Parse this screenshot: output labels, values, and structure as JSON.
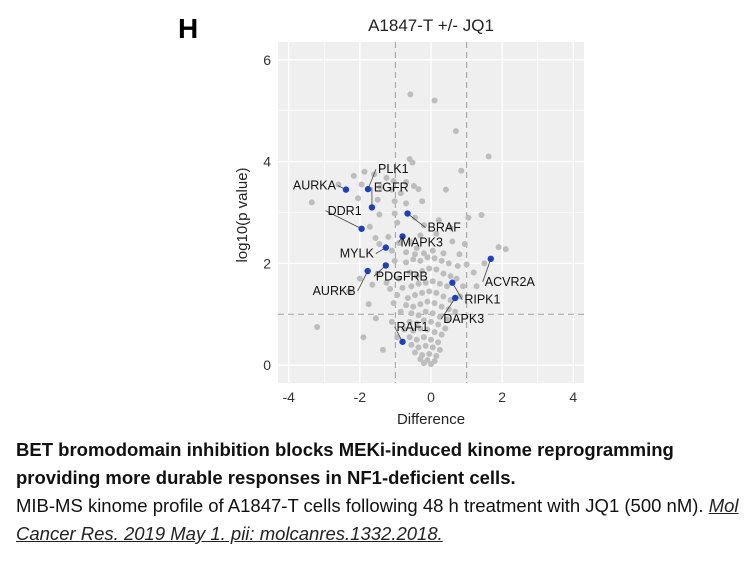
{
  "panel_letter": "H",
  "chart_data": {
    "type": "scatter",
    "title": "A1847-T +/- JQ1",
    "xlabel": "Difference",
    "ylabel": "log10(p value)",
    "xlim": [
      -4.3,
      4.3
    ],
    "ylim": [
      -0.35,
      6.35
    ],
    "xticks": [
      -4,
      -2,
      0,
      2,
      4
    ],
    "yticks": [
      0,
      2,
      4,
      6
    ],
    "grid": true,
    "thresholds": {
      "x": [
        -1,
        1
      ],
      "y": 1
    },
    "colors": {
      "background": "#efefef",
      "grid": "#ffffff",
      "background_points": "#bdbdbd",
      "highlight": "#1b3fc4",
      "threshold": "#aaaaaa"
    },
    "highlighted": [
      {
        "label": "PLK1",
        "x": -1.77,
        "y": 3.46
      },
      {
        "label": "AURKA",
        "x": -2.39,
        "y": 3.45
      },
      {
        "label": "EGFR",
        "x": -1.66,
        "y": 3.1
      },
      {
        "label": "DDR1",
        "x": -1.95,
        "y": 2.68
      },
      {
        "label": "BRAF",
        "x": -0.66,
        "y": 2.98
      },
      {
        "label": "MAPK3",
        "x": -0.8,
        "y": 2.53
      },
      {
        "label": "MYLK",
        "x": -1.27,
        "y": 2.31
      },
      {
        "label": "AURKB",
        "x": -1.78,
        "y": 1.85
      },
      {
        "label": "PDGFRB",
        "x": -1.27,
        "y": 1.96
      },
      {
        "label": "ACVR2A",
        "x": 1.68,
        "y": 2.09
      },
      {
        "label": "RIPK1",
        "x": 0.6,
        "y": 1.62
      },
      {
        "label": "DAPK3",
        "x": 0.68,
        "y": 1.32
      },
      {
        "label": "RAF1",
        "x": -0.8,
        "y": 0.46
      }
    ],
    "background_points": [
      [
        -0.58,
        5.32
      ],
      [
        0.1,
        5.2
      ],
      [
        0.7,
        4.6
      ],
      [
        1.62,
        4.1
      ],
      [
        0.85,
        3.82
      ],
      [
        -0.6,
        4.05
      ],
      [
        -0.52,
        3.98
      ],
      [
        -1.87,
        3.8
      ],
      [
        -2.17,
        3.72
      ],
      [
        -1.6,
        3.75
      ],
      [
        -1.25,
        3.68
      ],
      [
        -1.05,
        3.62
      ],
      [
        -0.7,
        3.6
      ],
      [
        -0.48,
        3.52
      ],
      [
        -1.95,
        3.55
      ],
      [
        -1.42,
        3.5
      ],
      [
        -1.1,
        3.45
      ],
      [
        -0.85,
        3.38
      ],
      [
        -0.35,
        3.46
      ],
      [
        0.42,
        3.45
      ],
      [
        -3.35,
        3.2
      ],
      [
        -2.05,
        3.28
      ],
      [
        -1.5,
        3.25
      ],
      [
        -1.02,
        3.22
      ],
      [
        -0.7,
        3.18
      ],
      [
        -0.25,
        3.22
      ],
      [
        -1.45,
        2.96
      ],
      [
        -1.02,
        2.98
      ],
      [
        -0.45,
        2.9
      ],
      [
        0.22,
        2.85
      ],
      [
        1.42,
        2.95
      ],
      [
        -1.72,
        2.72
      ],
      [
        -0.95,
        2.8
      ],
      [
        -0.2,
        2.75
      ],
      [
        0.55,
        2.7
      ],
      [
        -1.56,
        2.5
      ],
      [
        -1.2,
        2.52
      ],
      [
        -0.58,
        2.42
      ],
      [
        -0.3,
        2.55
      ],
      [
        0.15,
        2.58
      ],
      [
        0.6,
        2.43
      ],
      [
        1.9,
        2.32
      ],
      [
        -1.45,
        2.38
      ],
      [
        -0.9,
        2.4
      ],
      [
        -0.4,
        2.3
      ],
      [
        0.95,
        2.38
      ],
      [
        -1.1,
        2.25
      ],
      [
        -0.7,
        2.22
      ],
      [
        -0.45,
        2.18
      ],
      [
        -0.2,
        2.2
      ],
      [
        0.05,
        2.25
      ],
      [
        0.35,
        2.2
      ],
      [
        0.8,
        2.18
      ],
      [
        1.5,
        2.0
      ],
      [
        -2.0,
        1.7
      ],
      [
        -1.5,
        1.8
      ],
      [
        -1.02,
        2.05
      ],
      [
        -0.7,
        2.02
      ],
      [
        -0.5,
        2.08
      ],
      [
        -0.3,
        2.05
      ],
      [
        -0.1,
        2.12
      ],
      [
        0.1,
        2.1
      ],
      [
        0.3,
        2.05
      ],
      [
        0.5,
        2.0
      ],
      [
        0.75,
        1.95
      ],
      [
        1.0,
        1.98
      ],
      [
        1.2,
        1.82
      ],
      [
        -2.3,
        1.45
      ],
      [
        -1.65,
        1.58
      ],
      [
        -1.25,
        1.62
      ],
      [
        -0.9,
        1.7
      ],
      [
        -0.6,
        1.82
      ],
      [
        -0.4,
        1.75
      ],
      [
        -0.25,
        1.85
      ],
      [
        -0.05,
        1.9
      ],
      [
        0.15,
        1.88
      ],
      [
        0.35,
        1.8
      ],
      [
        0.55,
        1.75
      ],
      [
        0.72,
        1.7
      ],
      [
        0.9,
        1.55
      ],
      [
        1.28,
        1.55
      ],
      [
        -1.15,
        1.5
      ],
      [
        -0.8,
        1.52
      ],
      [
        -0.55,
        1.55
      ],
      [
        -0.35,
        1.6
      ],
      [
        -0.15,
        1.62
      ],
      [
        0.05,
        1.65
      ],
      [
        0.25,
        1.6
      ],
      [
        0.45,
        1.55
      ],
      [
        0.82,
        1.35
      ],
      [
        -0.95,
        1.38
      ],
      [
        -0.65,
        1.32
      ],
      [
        -0.45,
        1.38
      ],
      [
        -0.25,
        1.42
      ],
      [
        -0.05,
        1.45
      ],
      [
        0.15,
        1.42
      ],
      [
        0.35,
        1.35
      ],
      [
        0.55,
        1.28
      ],
      [
        -1.75,
        1.2
      ],
      [
        -1.05,
        1.22
      ],
      [
        -0.7,
        1.18
      ],
      [
        -0.5,
        1.15
      ],
      [
        -0.3,
        1.2
      ],
      [
        -0.1,
        1.25
      ],
      [
        0.1,
        1.22
      ],
      [
        0.3,
        1.15
      ],
      [
        0.5,
        1.1
      ],
      [
        0.68,
        1.05
      ],
      [
        -0.85,
        1.05
      ],
      [
        -0.55,
        1.02
      ],
      [
        -0.35,
        0.98
      ],
      [
        -0.15,
        1.05
      ],
      [
        0.05,
        1.02
      ],
      [
        0.25,
        0.95
      ],
      [
        0.45,
        0.9
      ],
      [
        -1.1,
        0.85
      ],
      [
        -0.6,
        0.85
      ],
      [
        -0.4,
        0.82
      ],
      [
        -0.2,
        0.88
      ],
      [
        0.0,
        0.85
      ],
      [
        0.2,
        0.8
      ],
      [
        0.4,
        0.72
      ],
      [
        -3.2,
        0.75
      ],
      [
        -1.55,
        0.92
      ],
      [
        -0.75,
        0.7
      ],
      [
        -0.5,
        0.68
      ],
      [
        -0.3,
        0.72
      ],
      [
        -0.1,
        0.7
      ],
      [
        0.1,
        0.65
      ],
      [
        0.3,
        0.6
      ],
      [
        -0.95,
        0.55
      ],
      [
        -0.6,
        0.55
      ],
      [
        -0.4,
        0.5
      ],
      [
        -0.2,
        0.55
      ],
      [
        0.0,
        0.5
      ],
      [
        0.2,
        0.45
      ],
      [
        -1.9,
        0.55
      ],
      [
        -0.55,
        0.4
      ],
      [
        -0.35,
        0.35
      ],
      [
        -0.15,
        0.38
      ],
      [
        0.05,
        0.35
      ],
      [
        0.25,
        0.3
      ],
      [
        -1.35,
        0.3
      ],
      [
        -0.45,
        0.25
      ],
      [
        -0.25,
        0.2
      ],
      [
        -0.05,
        0.22
      ],
      [
        0.15,
        0.18
      ],
      [
        -0.3,
        0.12
      ],
      [
        -0.1,
        0.1
      ],
      [
        0.1,
        0.08
      ],
      [
        -0.2,
        0.04
      ],
      [
        0.0,
        0.02
      ],
      [
        2.1,
        2.28
      ],
      [
        1.05,
        2.9
      ],
      [
        -2.6,
        3.55
      ]
    ]
  },
  "caption": {
    "heading": "BET bromodomain inhibition blocks MEKi-induced kinome reprogramming providing more durable responses in NF1-deficient cells.",
    "body": "MIB-MS kinome profile of A1847-T cells following 48 h treatment with JQ1 (500 nM).",
    "reference": "Mol Cancer Res. 2019 May 1. pii: molcanres.1332.2018."
  }
}
